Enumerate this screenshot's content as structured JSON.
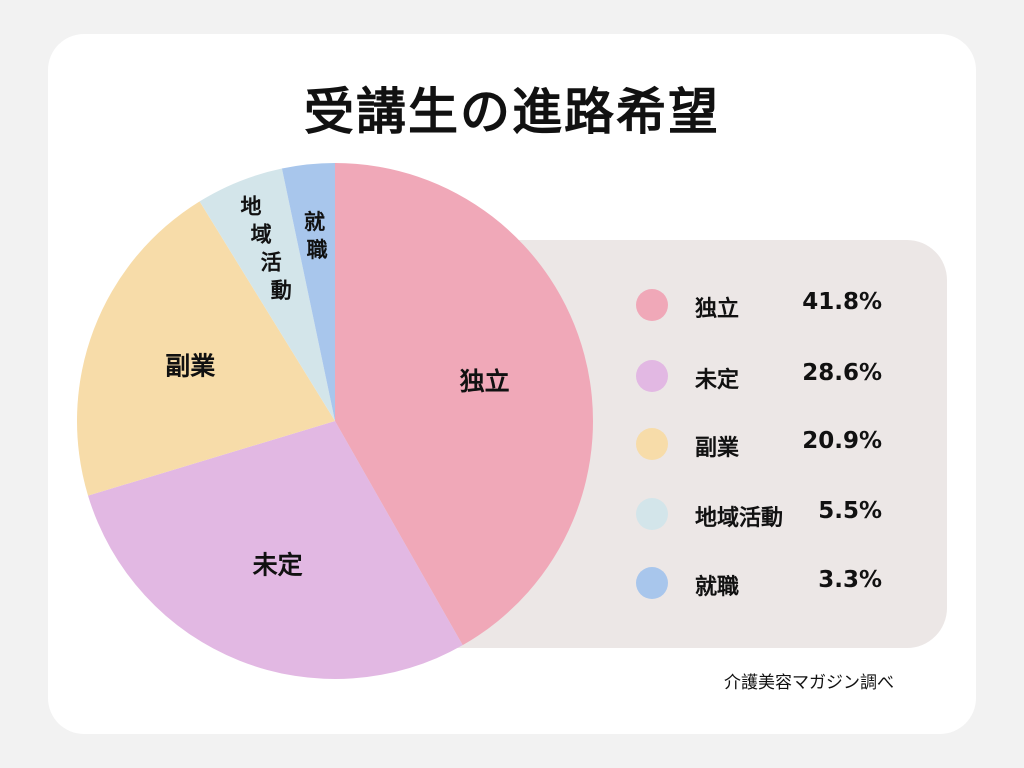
{
  "title": "受講生の進路希望",
  "source": "介護美容マガジン調べ",
  "chart_data": {
    "type": "pie",
    "title": "受講生の進路希望",
    "slices": [
      {
        "label": "独立",
        "value": 41.8,
        "display": "41.8%",
        "color": "#f0a8b8"
      },
      {
        "label": "未定",
        "value": 28.6,
        "display": "28.6%",
        "color": "#e2b8e3"
      },
      {
        "label": "副業",
        "value": 20.9,
        "display": "20.9%",
        "color": "#f7dca9"
      },
      {
        "label": "地域活動",
        "value": 5.5,
        "display": "5.5%",
        "color": "#d3e5ea"
      },
      {
        "label": "就職",
        "value": 3.3,
        "display": "3.3%",
        "color": "#a8c6ec"
      }
    ],
    "legend_position": "right"
  }
}
